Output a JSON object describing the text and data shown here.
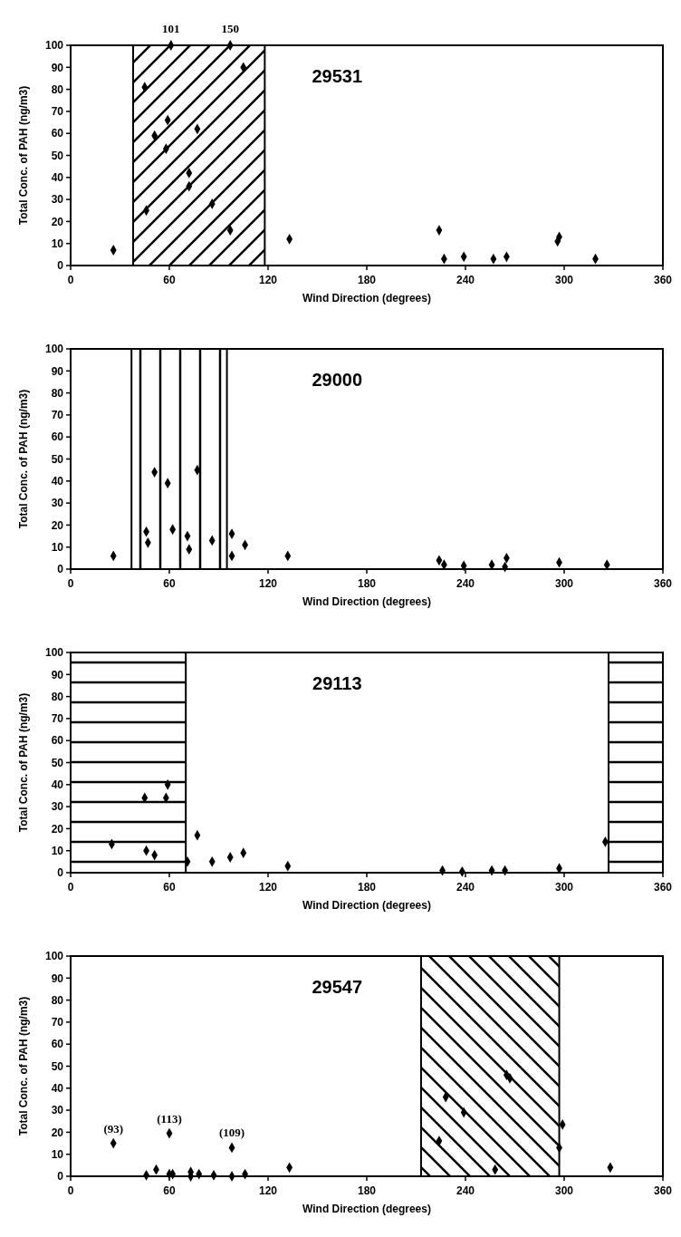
{
  "chart_data": [
    {
      "type": "scatter",
      "title": "29531",
      "xlabel": "Wind Direction (degrees)",
      "ylabel": "Total Conc. of PAH (ng/m3)",
      "xlim": [
        0,
        360
      ],
      "xticks": [
        0,
        60,
        120,
        180,
        240,
        300,
        360
      ],
      "ylim": [
        0,
        100
      ],
      "yticks": [
        0,
        10,
        20,
        30,
        40,
        50,
        60,
        70,
        80,
        90,
        100
      ],
      "grid": false,
      "marker": "diamond",
      "bands": [
        {
          "axis": "x",
          "from": 38,
          "to": 118,
          "color": "#000000"
        }
      ],
      "annotations": [
        {
          "text": "101",
          "x": 61,
          "y": 100
        },
        {
          "text": "150",
          "x": 97,
          "y": 100
        }
      ],
      "series": [
        {
          "color": "#000000",
          "x": [
            26,
            45,
            46,
            51,
            58,
            59,
            61,
            72,
            72,
            77,
            86,
            97,
            97,
            105,
            133,
            224,
            227,
            239,
            257,
            265,
            296,
            297,
            319
          ],
          "values": [
            7,
            81,
            25,
            59,
            53,
            66,
            100,
            42,
            36,
            62,
            28,
            16,
            100,
            90,
            12,
            16,
            3,
            4,
            3,
            4,
            11,
            13,
            3
          ]
        }
      ]
    },
    {
      "type": "scatter",
      "title": "29000",
      "xlabel": "Wind Direction (degrees)",
      "ylabel": "Total Conc. of PAH (ng/m3)",
      "xlim": [
        0,
        360
      ],
      "xticks": [
        0,
        60,
        120,
        180,
        240,
        300,
        360
      ],
      "ylim": [
        0,
        100
      ],
      "yticks": [
        0,
        10,
        20,
        30,
        40,
        50,
        60,
        70,
        80,
        90,
        100
      ],
      "grid": false,
      "marker": "diamond",
      "bands": [
        {
          "axis": "x",
          "from": 37,
          "to": 95,
          "color": "#000000"
        }
      ],
      "series": [
        {
          "color": "#000000",
          "x": [
            26,
            46,
            47,
            51,
            59,
            62,
            71,
            72,
            77,
            86,
            98,
            98,
            106,
            132,
            224,
            227,
            239,
            256,
            265,
            264,
            297,
            326
          ],
          "values": [
            6,
            17,
            12,
            44,
            39,
            18,
            15,
            9,
            45,
            13,
            16,
            6,
            11,
            6,
            4,
            2,
            1.5,
            2,
            5,
            1,
            3,
            2
          ]
        }
      ]
    },
    {
      "type": "scatter",
      "title": "29113",
      "xlabel": "Wind Direction (degrees)",
      "ylabel": "Total Conc. of PAH (ng/m3)",
      "xlim": [
        0,
        360
      ],
      "xticks": [
        0,
        60,
        120,
        180,
        240,
        300,
        360
      ],
      "ylim": [
        0,
        100
      ],
      "yticks": [
        0,
        10,
        20,
        30,
        40,
        50,
        60,
        70,
        80,
        90,
        100
      ],
      "grid": false,
      "marker": "diamond",
      "bands": [
        {
          "axis": "x",
          "from": 0,
          "to": 70,
          "color": "#000000"
        },
        {
          "axis": "x",
          "from": 327,
          "to": 360,
          "color": "#000000"
        }
      ],
      "series": [
        {
          "color": "#000000",
          "x": [
            25,
            45,
            46,
            51,
            58,
            59,
            71,
            77,
            86,
            97,
            105,
            132,
            226,
            238,
            256,
            264,
            297,
            325
          ],
          "values": [
            13,
            34,
            10,
            8,
            34,
            40,
            5,
            17,
            5,
            7,
            9,
            3,
            1,
            0.5,
            1,
            1,
            2,
            14
          ]
        }
      ]
    },
    {
      "type": "scatter",
      "title": "29547",
      "xlabel": "Wind Direction (degrees)",
      "ylabel": "Total Conc. of PAH (ng/m3)",
      "xlim": [
        0,
        360
      ],
      "xticks": [
        0,
        60,
        120,
        180,
        240,
        300,
        360
      ],
      "ylim": [
        0,
        100
      ],
      "yticks": [
        0,
        10,
        20,
        30,
        40,
        50,
        60,
        70,
        80,
        90,
        100
      ],
      "grid": false,
      "marker": "diamond",
      "bands": [
        {
          "axis": "x",
          "from": 213,
          "to": 297,
          "color": "#000000"
        }
      ],
      "annotations": [
        {
          "text": "(93)",
          "x": 26,
          "y": 15
        },
        {
          "text": "(113)",
          "x": 60,
          "y": 19.5
        },
        {
          "text": "(109)",
          "x": 98,
          "y": 13
        }
      ],
      "series": [
        {
          "color": "#000000",
          "x": [
            26,
            46,
            52,
            60,
            60,
            62,
            73,
            73,
            78,
            87,
            98,
            98,
            106,
            133,
            224,
            228,
            239,
            258,
            265,
            267,
            297,
            299,
            328
          ],
          "values": [
            15,
            0.5,
            3,
            19.5,
            1,
            1,
            2,
            0,
            1,
            0.5,
            13,
            0,
            1,
            4,
            16,
            36,
            29,
            3,
            46,
            44.5,
            13,
            23.5,
            4
          ]
        }
      ]
    }
  ]
}
